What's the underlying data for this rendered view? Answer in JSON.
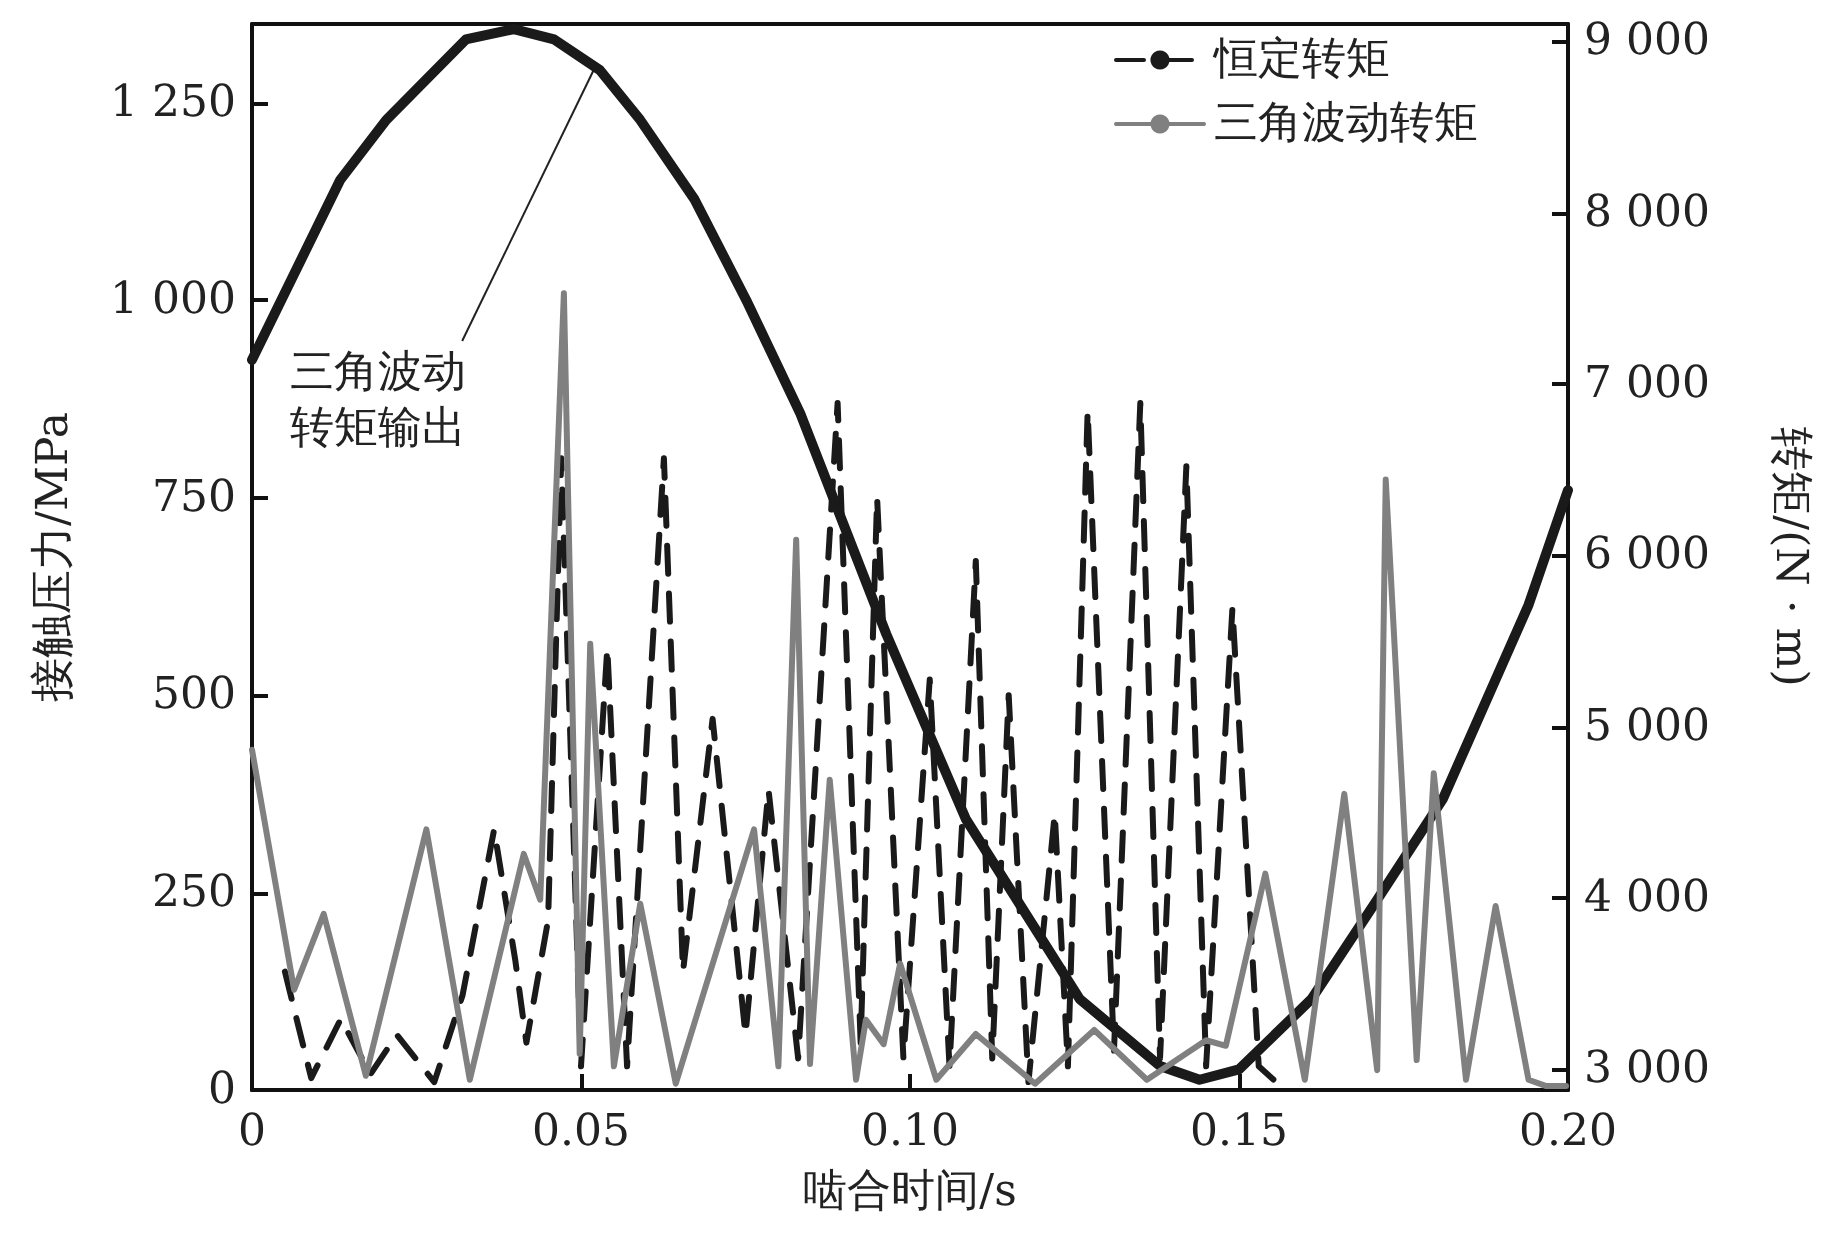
{
  "chart_data": {
    "type": "line",
    "xlabel": "啮合时间/s",
    "ylabel": "接触压力/MPa",
    "y2label": "转矩/(N · m)",
    "xlim": [
      0,
      0.2
    ],
    "xticks": [
      0,
      0.05,
      {
        "value": 0.1,
        "label": "0.10"
      },
      {
        "value": 0.15,
        "label": "0.15"
      },
      {
        "value": 0.2,
        "label": "0.20"
      }
    ],
    "ylim": [
      0,
      1350
    ],
    "yticks": [
      0,
      250,
      500,
      750,
      {
        "value": 1000,
        "label": "1 000"
      },
      {
        "value": 1250,
        "label": "1 250"
      }
    ],
    "y2lim": [
      2880,
      9100
    ],
    "y2ticks": [
      {
        "value": 3000,
        "label": "3 000"
      },
      {
        "value": 4000,
        "label": "4 000"
      },
      {
        "value": 5000,
        "label": "5 000"
      },
      {
        "value": 6000,
        "label": "6 000"
      },
      {
        "value": 7000,
        "label": "7 000"
      },
      {
        "value": 8000,
        "label": "8 000"
      },
      {
        "value": 9000,
        "label": "9 000"
      }
    ],
    "grid": false,
    "legend": "top right",
    "marker": "none",
    "annotations": [
      {
        "text": "三角波动转矩输出",
        "x": 0.052,
        "y": 1293
      }
    ],
    "series": [
      {
        "name": "恒定转矩",
        "color": "#1a1a1a",
        "line_style": "dashed",
        "x": [
          0.005,
          0.009,
          0.0135,
          0.018,
          0.022,
          0.0277,
          0.032,
          0.0368,
          0.04,
          0.0417,
          0.045,
          0.047,
          0.05,
          0.054,
          0.057,
          0.0626,
          0.0655,
          0.07,
          0.075,
          0.0785,
          0.083,
          0.089,
          0.0925,
          0.095,
          0.099,
          0.103,
          0.106,
          0.11,
          0.1125,
          0.115,
          0.118,
          0.122,
          0.124,
          0.127,
          0.131,
          0.135,
          0.138,
          0.142,
          0.145,
          0.149,
          0.153,
          0.157
        ],
        "values": [
          150,
          15,
          90,
          20,
          70,
          10,
          120,
          330,
          165,
          60,
          215,
          800,
          30,
          560,
          30,
          800,
          150,
          470,
          70,
          380,
          40,
          870,
          60,
          750,
          40,
          520,
          30,
          670,
          40,
          500,
          10,
          350,
          30,
          860,
          50,
          870,
          40,
          790,
          30,
          610,
          30,
          0
        ]
      },
      {
        "name": "三角波动转矩",
        "color": "#808080",
        "line_style": "solid",
        "x": [
          0,
          0.0064,
          0.0109,
          0.0173,
          0.0265,
          0.0331,
          0.0413,
          0.0438,
          0.0474,
          0.0498,
          0.0514,
          0.055,
          0.059,
          0.0644,
          0.0763,
          0.08,
          0.0827,
          0.0848,
          0.0878,
          0.0918,
          0.0933,
          0.096,
          0.0985,
          0.104,
          0.11,
          0.119,
          0.128,
          0.136,
          0.145,
          0.148,
          0.154,
          0.16,
          0.166,
          0.171,
          0.1723,
          0.177,
          0.1796,
          0.1845,
          0.189,
          0.194,
          0.1967,
          0.1997
        ],
        "values": [
          431,
          127,
          223,
          18,
          330,
          13,
          299,
          241,
          1009,
          46,
          565,
          30,
          236,
          8,
          330,
          30,
          697,
          33,
          393,
          13,
          89,
          58,
          160,
          13,
          71,
          8,
          76,
          13,
          63,
          56,
          274,
          13,
          375,
          25,
          773,
          38,
          401,
          13,
          233,
          13,
          5,
          5
        ]
      },
      {
        "color": "#1a1a1a",
        "line_style": "solid",
        "axis": "y2",
        "x": [
          0,
          0.0134,
          0.0204,
          0.0325,
          0.0398,
          0.0459,
          0.0529,
          0.059,
          0.0672,
          0.0751,
          0.0833,
          0.0964,
          0.1085,
          0.1258,
          0.138,
          0.144,
          0.15,
          0.161,
          0.171,
          0.181,
          0.194,
          0.2
        ],
        "values": [
          7140,
          8190,
          8540,
          9010,
          9070,
          9010,
          8830,
          8540,
          8080,
          7490,
          6830,
          5540,
          4460,
          3410,
          3020,
          2940,
          3000,
          3410,
          3990,
          4580,
          5710,
          6380
        ]
      }
    ]
  }
}
